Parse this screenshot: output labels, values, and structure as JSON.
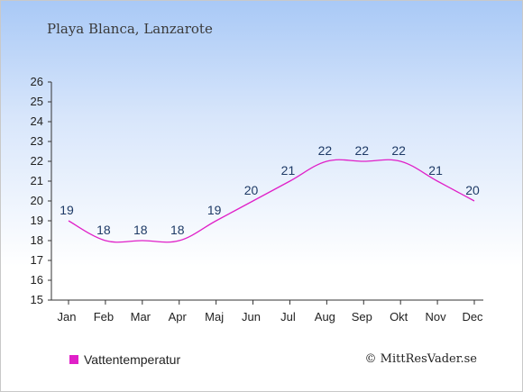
{
  "header": {
    "title": "Playa Blanca, Lanzarote"
  },
  "legend": {
    "label": "Vattentemperatur",
    "color": "#e020c8"
  },
  "credit": "© MittResVader.se",
  "chart_data": {
    "type": "line",
    "title": "Playa Blanca, Lanzarote",
    "xlabel": "",
    "ylabel": "",
    "categories": [
      "Jan",
      "Feb",
      "Mar",
      "Apr",
      "Maj",
      "Jun",
      "Jul",
      "Aug",
      "Sep",
      "Okt",
      "Nov",
      "Dec"
    ],
    "series": [
      {
        "name": "Vattentemperatur",
        "values": [
          19,
          18,
          18,
          18,
          19,
          20,
          21,
          22,
          22,
          22,
          21,
          20
        ],
        "color": "#e020c8"
      }
    ],
    "ylim": [
      15,
      26
    ],
    "yticks": [
      15,
      16,
      17,
      18,
      19,
      20,
      21,
      22,
      23,
      24,
      25,
      26
    ],
    "grid": false,
    "legend_position": "bottom-left"
  }
}
